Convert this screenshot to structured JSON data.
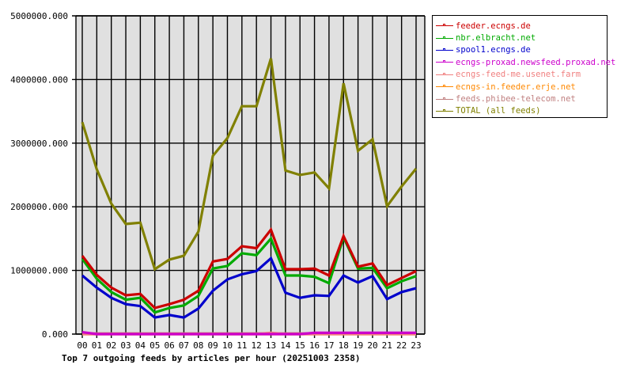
{
  "chart_data": {
    "type": "line",
    "title": "Top 7 outgoing feeds by articles per hour (20251003 2358)",
    "xlabel": "",
    "ylabel": "",
    "ylim": [
      0,
      5000000
    ],
    "grid": true,
    "legend_position": "right",
    "y_ticks": [
      "0.000",
      "1000000.000",
      "2000000.000",
      "3000000.000",
      "4000000.000",
      "5000000.000"
    ],
    "categories": [
      "00",
      "01",
      "02",
      "03",
      "04",
      "05",
      "06",
      "07",
      "08",
      "09",
      "10",
      "11",
      "12",
      "13",
      "14",
      "15",
      "16",
      "17",
      "18",
      "19",
      "20",
      "21",
      "22",
      "23"
    ],
    "series": [
      {
        "name": "feeder.ecngs.de",
        "color": "#cc0000",
        "values": [
          1230000,
          930000,
          730000,
          610000,
          630000,
          410000,
          470000,
          540000,
          680000,
          1140000,
          1180000,
          1380000,
          1350000,
          1640000,
          1020000,
          1020000,
          1030000,
          920000,
          1540000,
          1060000,
          1110000,
          770000,
          880000,
          990000
        ]
      },
      {
        "name": "nbr.elbracht.net",
        "color": "#00aa00",
        "values": [
          1180000,
          870000,
          660000,
          540000,
          570000,
          340000,
          410000,
          450000,
          600000,
          1030000,
          1070000,
          1270000,
          1240000,
          1500000,
          920000,
          920000,
          900000,
          800000,
          1520000,
          1030000,
          1040000,
          720000,
          830000,
          910000
        ]
      },
      {
        "name": "spool1.ecngs.de",
        "color": "#0000cc",
        "values": [
          920000,
          730000,
          570000,
          470000,
          440000,
          260000,
          300000,
          260000,
          400000,
          680000,
          860000,
          940000,
          990000,
          1190000,
          650000,
          570000,
          610000,
          600000,
          920000,
          810000,
          910000,
          550000,
          660000,
          720000
        ]
      },
      {
        "name": "ecngs-proxad.newsfeed.proxad.net",
        "color": "#cc00cc",
        "values": [
          30000,
          0,
          0,
          0,
          0,
          0,
          0,
          0,
          0,
          0,
          0,
          0,
          0,
          0,
          0,
          0,
          20000,
          20000,
          20000,
          20000,
          20000,
          20000,
          20000,
          20000
        ]
      },
      {
        "name": "ecngs-feed-me.usenet.farm",
        "color": "#f08080",
        "values": [
          0,
          0,
          0,
          0,
          0,
          0,
          0,
          0,
          0,
          0,
          0,
          0,
          0,
          20000,
          0,
          0,
          0,
          0,
          0,
          0,
          0,
          0,
          0,
          0
        ]
      },
      {
        "name": "ecngs-in.feeder.erje.net",
        "color": "#ff8800",
        "values": [
          0,
          0,
          0,
          0,
          0,
          0,
          0,
          0,
          0,
          0,
          0,
          0,
          0,
          0,
          0,
          0,
          0,
          0,
          0,
          0,
          0,
          0,
          0,
          0
        ]
      },
      {
        "name": "feeds.phibee-telecom.net",
        "color": "#c08080",
        "values": [
          10000,
          10000,
          10000,
          10000,
          10000,
          10000,
          10000,
          10000,
          10000,
          10000,
          10000,
          10000,
          10000,
          10000,
          10000,
          10000,
          10000,
          10000,
          10000,
          10000,
          10000,
          10000,
          10000,
          10000
        ]
      },
      {
        "name": "TOTAL (all feeds)",
        "color": "#808000",
        "values": [
          3330000,
          2590000,
          2050000,
          1730000,
          1750000,
          1020000,
          1170000,
          1230000,
          1610000,
          2800000,
          3080000,
          3580000,
          3580000,
          4330000,
          2570000,
          2500000,
          2540000,
          2290000,
          3940000,
          2880000,
          3060000,
          2010000,
          2320000,
          2600000
        ]
      }
    ]
  },
  "legend": {
    "items": [
      {
        "label": "feeder.ecngs.de",
        "color": "#cc0000"
      },
      {
        "label": "nbr.elbracht.net",
        "color": "#00aa00"
      },
      {
        "label": "spool1.ecngs.de",
        "color": "#0000cc"
      },
      {
        "label": "ecngs-proxad.newsfeed.proxad.net",
        "color": "#cc00cc"
      },
      {
        "label": "ecngs-feed-me.usenet.farm",
        "color": "#f08080"
      },
      {
        "label": "ecngs-in.feeder.erje.net",
        "color": "#ff8800"
      },
      {
        "label": "feeds.phibee-telecom.net",
        "color": "#c08080"
      },
      {
        "label": "TOTAL (all feeds)",
        "color": "#808000"
      }
    ]
  },
  "colors": {
    "plot_background": "#e0e0e0",
    "grid": "#000000",
    "page_background": "#ffffff"
  }
}
